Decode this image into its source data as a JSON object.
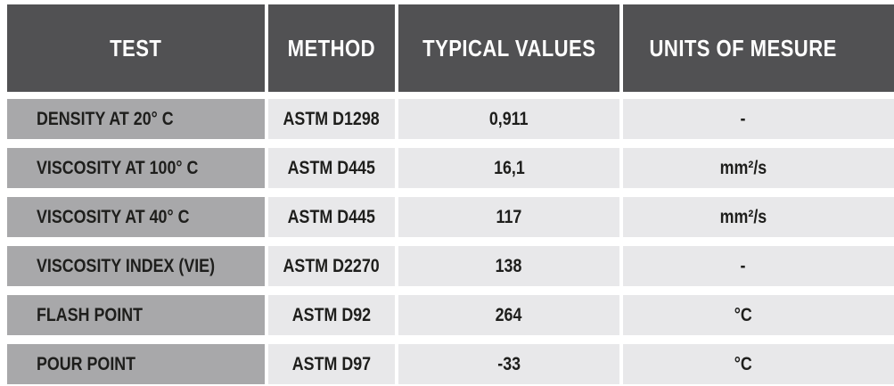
{
  "table": {
    "headers": [
      "TEST",
      "METHOD",
      "TYPICAL VALUES",
      "UNITS OF MESURE"
    ],
    "rows": [
      {
        "test": "DENSITY AT 20° C",
        "method": "ASTM D1298",
        "value": "0,911",
        "units": "-"
      },
      {
        "test": "VISCOSITY AT 100° C",
        "method": "ASTM D445",
        "value": "16,1",
        "units": "mm²/s"
      },
      {
        "test": "VISCOSITY AT 40° C",
        "method": "ASTM D445",
        "value": "117",
        "units": "mm²/s"
      },
      {
        "test": "VISCOSITY INDEX (VIE)",
        "method": "ASTM D2270",
        "value": "138",
        "units": "-"
      },
      {
        "test": "FLASH POINT",
        "method": "ASTM D92",
        "value": "264",
        "units": "°C"
      },
      {
        "test": "POUR POINT",
        "method": "ASTM D97",
        "value": "-33",
        "units": "°C"
      }
    ],
    "colors": {
      "header_bg": "#515153",
      "header_text": "#ffffff",
      "test_cell_bg": "#a8a8aa",
      "data_cell_bg": "#e8e8ea",
      "body_text": "#1e1e1c",
      "gutter": "#ffffff"
    }
  }
}
